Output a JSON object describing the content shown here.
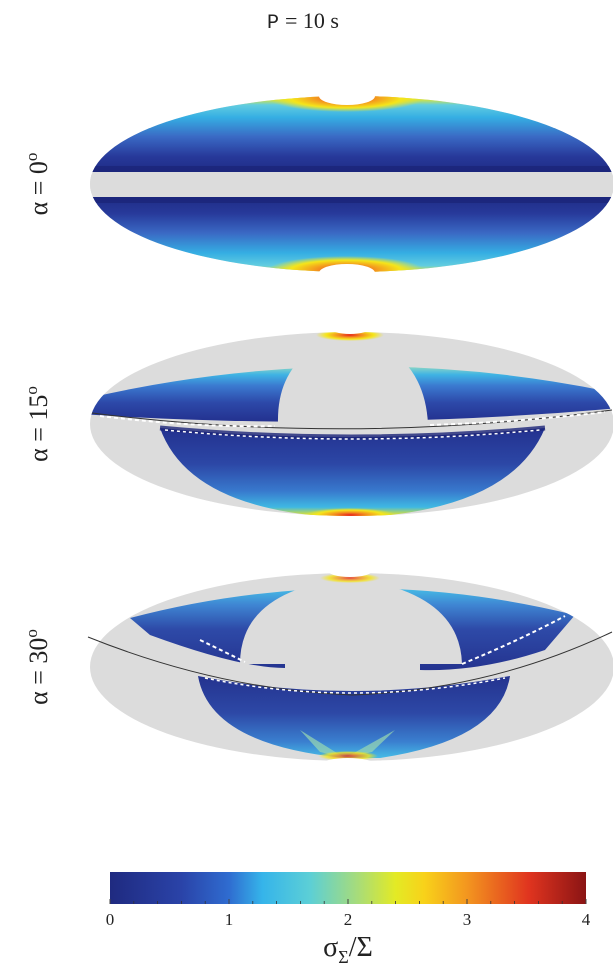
{
  "title": {
    "p_label": "P",
    "value_text": "= 10 s"
  },
  "rows": [
    {
      "alpha_symbol": "α",
      "eq": " = ",
      "value": "0",
      "sup": "o"
    },
    {
      "alpha_symbol": "α",
      "eq": " = ",
      "value": "15",
      "sup": "o"
    },
    {
      "alpha_symbol": "α",
      "eq": " = ",
      "value": "30",
      "sup": "o"
    }
  ],
  "colorbar": {
    "ticks": [
      "0",
      "1",
      "2",
      "3",
      "4"
    ],
    "range": [
      0,
      4
    ],
    "colormap": "jet",
    "label_sigma": "σ",
    "label_sub": "Σ",
    "label_tail": "/Σ"
  },
  "colors": {
    "gray": "#dcdcdc",
    "dark_blue": "#1f2f8e",
    "mid_blue": "#3557b8",
    "cyan": "#2fb6e6",
    "yellow": "#f5e51a",
    "orange": "#f2921f",
    "red": "#d21f1f"
  }
}
